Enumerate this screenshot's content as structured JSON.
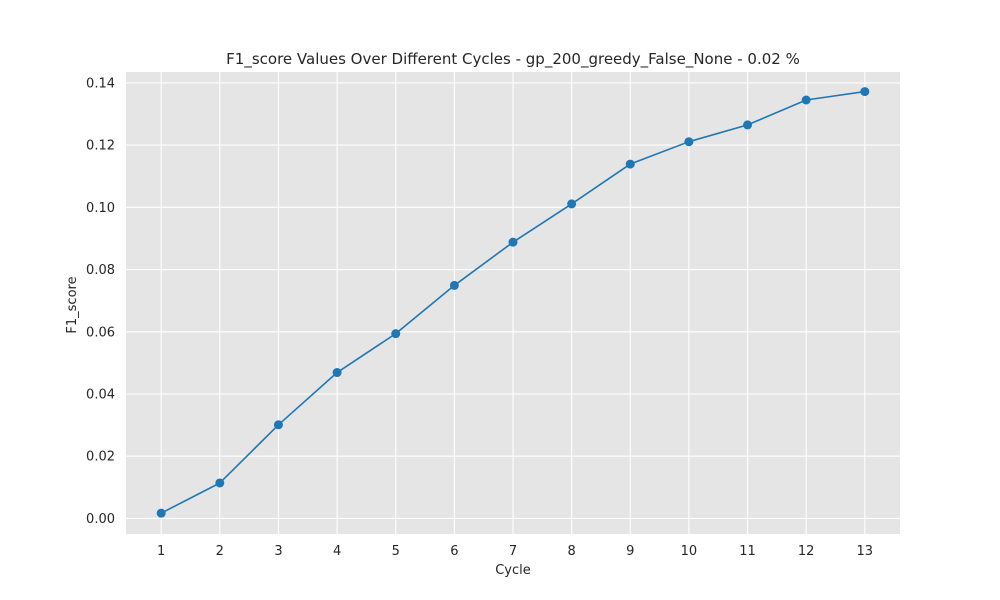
{
  "chart_data": {
    "type": "line",
    "title": "F1_score Values Over Different Cycles - gp_200_greedy_False_None - 0.02 %",
    "xlabel": "Cycle",
    "ylabel": "F1_score",
    "x": [
      1,
      2,
      3,
      4,
      5,
      6,
      7,
      8,
      9,
      10,
      11,
      12,
      13
    ],
    "x_tick_labels": [
      "1",
      "2",
      "3",
      "4",
      "5",
      "6",
      "7",
      "8",
      "9",
      "10",
      "11",
      "12",
      "13"
    ],
    "y_ticks": [
      0.0,
      0.02,
      0.04,
      0.06,
      0.08,
      0.1,
      0.12,
      0.14
    ],
    "y_tick_labels": [
      "0.00",
      "0.02",
      "0.04",
      "0.06",
      "0.08",
      "0.10",
      "0.12",
      "0.14"
    ],
    "series": [
      {
        "values": [
          0.0017,
          0.0114,
          0.0301,
          0.0469,
          0.0594,
          0.0749,
          0.0888,
          0.1011,
          0.1139,
          0.1211,
          0.1265,
          0.1345,
          0.1372
        ],
        "marker": "circle",
        "color": "#1f77b4"
      }
    ],
    "xlim": [
      0.4,
      13.6
    ],
    "ylim": [
      -0.005,
      0.1435
    ],
    "grid": true,
    "plot_background": "#e5e5e5",
    "grid_color": "#ffffff"
  }
}
